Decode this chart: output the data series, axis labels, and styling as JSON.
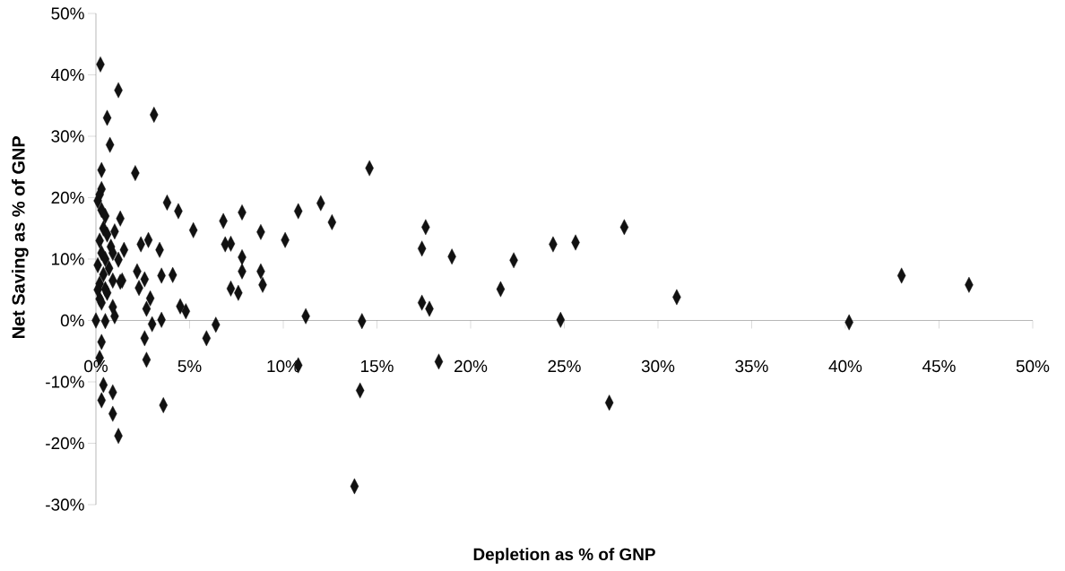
{
  "chart_data": {
    "type": "scatter",
    "xlabel": "Depletion as % of GNP",
    "ylabel": "Net Saving as % of GNP",
    "x": [
      0.24,
      1.2,
      0.6,
      3.1,
      0.75,
      0.3,
      2.1,
      0.3,
      3.8,
      4.4,
      5.2,
      1.3,
      6.8,
      7.8,
      8.8,
      6.9,
      7.2,
      7.8,
      2.8,
      2.4,
      3.4,
      1.5,
      1.2,
      4.1,
      3.5,
      2.2,
      2.6,
      2.3,
      1.3,
      2.9,
      2.7,
      4.5,
      4.8,
      3.0,
      3.5,
      6.4,
      5.9,
      2.6,
      2.7,
      3.6,
      1.2,
      0.9,
      0.9,
      0.4,
      0.3,
      0.3,
      0,
      0.5,
      1.0,
      0.9,
      0.3,
      0.5,
      1.4,
      0.2,
      7.2,
      7.6,
      7.8,
      8.8,
      8.9,
      10.1,
      10.8,
      12.0,
      12.6,
      14.6,
      11.2,
      14.2,
      10.8,
      14.1,
      17.6,
      17.4,
      19.0,
      17.4,
      17.8,
      18.3,
      21.6,
      22.3,
      24.4,
      25.6,
      28.2,
      24.8,
      27.4,
      13.8,
      31.0,
      40.2,
      43.0,
      46.6,
      0.1,
      0.2,
      0.3,
      0.5,
      0.4,
      0.6,
      0.2,
      0.8,
      0.3,
      0.5,
      0.1,
      0.7,
      0.4,
      0.9,
      0.2,
      0.6,
      1.0,
      0.9,
      0.2,
      0.1
    ],
    "values": [
      41.7,
      37.5,
      33,
      33.5,
      28.6,
      24.5,
      24,
      21.4,
      19.2,
      17.8,
      14.7,
      16.6,
      16.2,
      17.6,
      14.4,
      12.4,
      12.5,
      10.3,
      13.1,
      12.4,
      11.5,
      11.5,
      9.9,
      7.4,
      7.3,
      8.0,
      6.7,
      5.3,
      6.3,
      3.6,
      1.9,
      2.3,
      1.5,
      -0.6,
      0.1,
      -0.7,
      -2.9,
      -2.9,
      -6.4,
      -13.8,
      -18.8,
      -15.2,
      -11.7,
      -10.5,
      -13,
      -3.5,
      0,
      -0.1,
      0.7,
      2.2,
      2.9,
      5.1,
      6.5,
      -6.1,
      5.2,
      4.5,
      8.0,
      8.0,
      5.8,
      13.1,
      17.8,
      19.1,
      16.0,
      24.8,
      0.7,
      -0.1,
      -7.3,
      -11.4,
      15.2,
      11.7,
      10.4,
      2.9,
      1.9,
      -6.7,
      5.1,
      9.8,
      12.4,
      12.7,
      15.2,
      0.1,
      -13.4,
      -27,
      3.8,
      -0.3,
      7.3,
      5.8,
      19.5,
      20.5,
      18,
      17,
      15,
      14,
      13,
      12,
      11,
      10,
      9,
      8.5,
      7.5,
      6.5,
      6,
      4.5,
      14.5,
      11,
      3.5,
      5
    ],
    "color": "#111111",
    "marker": "diamond",
    "xlim": [
      0,
      50
    ],
    "ylim": [
      -30,
      50
    ],
    "xticks": [
      {
        "value": 0,
        "label": "0%"
      },
      {
        "value": 5,
        "label": "5%"
      },
      {
        "value": 10,
        "label": "10%"
      },
      {
        "value": 15,
        "label": "15%"
      },
      {
        "value": 20,
        "label": "20%"
      },
      {
        "value": 25,
        "label": "25%"
      },
      {
        "value": 30,
        "label": "30%"
      },
      {
        "value": 35,
        "label": "35%"
      },
      {
        "value": 40,
        "label": "40%"
      },
      {
        "value": 45,
        "label": "45%"
      },
      {
        "value": 50,
        "label": "50%"
      }
    ],
    "yticks": [
      {
        "value": -30,
        "label": "-30%"
      },
      {
        "value": -20,
        "label": "-20%"
      },
      {
        "value": -10,
        "label": "-10%"
      },
      {
        "value": 0,
        "label": "0%"
      },
      {
        "value": 10,
        "label": "10%"
      },
      {
        "value": 20,
        "label": "20%"
      },
      {
        "value": 30,
        "label": "30%"
      },
      {
        "value": 40,
        "label": "40%"
      },
      {
        "value": 50,
        "label": "50%"
      }
    ]
  }
}
